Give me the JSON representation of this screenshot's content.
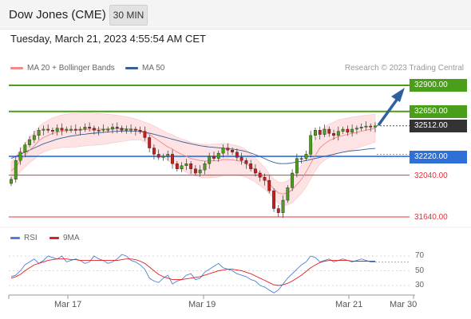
{
  "header": {
    "title": "Dow Jones (CME)",
    "timeframe": "30 MIN",
    "datetime": "Tuesday, March 21, 2023 4:55:54 AM CET"
  },
  "legend": {
    "ma20": "MA 20 + Bollinger Bands",
    "ma50": "MA 50",
    "credit": "Research © 2023 Trading Central",
    "ma20_color": "#f28a8a",
    "ma50_color": "#3a5f95"
  },
  "rsi_legend": {
    "rsi": "RSI",
    "ma": "9MA",
    "rsi_color": "#4d7fd9",
    "ma_color": "#e02020"
  },
  "colors": {
    "resistance": "#4a9e1a",
    "pivot": "#2f6fd8",
    "support": "#e8303a",
    "last": "#333333",
    "candle_up": "#4a9e1a",
    "candle_down": "#c41e1e",
    "band_fill": "#fde3e3",
    "arrow": "#2e5f9e"
  },
  "chart_data": [
    {
      "type": "line",
      "title": "",
      "x_ticks": [
        "Mar 17",
        "Mar 19",
        "Mar 21",
        "Mar 30"
      ],
      "y_range": [
        31560,
        32960
      ],
      "levels": [
        {
          "label": "32900.00",
          "value": 32900,
          "kind": "resistance"
        },
        {
          "label": "32650.00",
          "value": 32650,
          "kind": "resistance"
        },
        {
          "label": "32512.00",
          "value": 32512,
          "kind": "last"
        },
        {
          "label": "32220.00",
          "value": 32220,
          "kind": "pivot"
        },
        {
          "label": "32040.00",
          "value": 32040,
          "kind": "support"
        },
        {
          "label": "31640.00",
          "value": 31640,
          "kind": "support"
        }
      ],
      "price_series": [
        32000,
        32180,
        32260,
        32330,
        32380,
        32420,
        32470,
        32480,
        32470,
        32460,
        32490,
        32470,
        32480,
        32480,
        32470,
        32480,
        32500,
        32490,
        32470,
        32470,
        32480,
        32480,
        32500,
        32490,
        32470,
        32480,
        32480,
        32470,
        32460,
        32400,
        32300,
        32240,
        32210,
        32220,
        32240,
        32150,
        32100,
        32130,
        32150,
        32100,
        32060,
        32090,
        32150,
        32220,
        32200,
        32250,
        32300,
        32280,
        32260,
        32210,
        32180,
        32150,
        32100,
        32060,
        32020,
        31990,
        31890,
        31720,
        31680,
        31800,
        31920,
        32060,
        32200,
        32200,
        32240,
        32420,
        32470,
        32430,
        32480,
        32440,
        32420,
        32460,
        32480,
        32450,
        32480,
        32490,
        32500,
        32510,
        32500,
        32512
      ],
      "ma20_series": [
        32080,
        32120,
        32180,
        32230,
        32280,
        32320,
        32370,
        32400,
        32420,
        32440,
        32450,
        32460,
        32465,
        32470,
        32470,
        32475,
        32478,
        32480,
        32480,
        32480,
        32480,
        32482,
        32484,
        32484,
        32484,
        32484,
        32482,
        32478,
        32470,
        32450,
        32430,
        32400,
        32370,
        32340,
        32310,
        32290,
        32260,
        32240,
        32220,
        32200,
        32190,
        32180,
        32175,
        32175,
        32178,
        32180,
        32190,
        32190,
        32185,
        32180,
        32170,
        32150,
        32120,
        32090,
        32050,
        32010,
        31960,
        31910,
        31870,
        31860,
        31870,
        31900,
        31950,
        32000,
        32070,
        32150,
        32230,
        32300,
        32340,
        32370,
        32390,
        32410,
        32420,
        32430,
        32440,
        32450,
        32460,
        32470,
        32480,
        32490
      ],
      "ma50_series": [
        32200,
        32220,
        32240,
        32260,
        32280,
        32300,
        32320,
        32340,
        32355,
        32370,
        32385,
        32395,
        32405,
        32415,
        32420,
        32428,
        32432,
        32438,
        32442,
        32446,
        32450,
        32454,
        32458,
        32460,
        32462,
        32463,
        32462,
        32460,
        32456,
        32450,
        32442,
        32432,
        32420,
        32408,
        32396,
        32384,
        32372,
        32360,
        32350,
        32340,
        32330,
        32322,
        32316,
        32310,
        32306,
        32302,
        32298,
        32294,
        32290,
        32284,
        32276,
        32266,
        32252,
        32236,
        32218,
        32198,
        32178,
        32162,
        32152,
        32150,
        32152,
        32158,
        32166,
        32172,
        32180,
        32190,
        32200,
        32210,
        32220,
        32230,
        32240,
        32250,
        32260,
        32268,
        32274,
        32278,
        32282,
        32288,
        32292,
        32296
      ]
    },
    {
      "type": "line",
      "title": "",
      "y_ticks": [
        70,
        50,
        30
      ],
      "y_range": [
        12,
        84
      ],
      "rsi_series": [
        42,
        44,
        50,
        58,
        62,
        66,
        60,
        64,
        70,
        68,
        66,
        70,
        62,
        64,
        66,
        64,
        60,
        62,
        70,
        66,
        64,
        60,
        62,
        66,
        72,
        70,
        64,
        62,
        58,
        52,
        40,
        36,
        34,
        40,
        44,
        32,
        36,
        38,
        44,
        46,
        38,
        40,
        48,
        52,
        56,
        60,
        54,
        52,
        50,
        46,
        44,
        42,
        38,
        36,
        30,
        28,
        24,
        20,
        24,
        32,
        40,
        46,
        52,
        58,
        62,
        70,
        68,
        62,
        64,
        66,
        62,
        64,
        66,
        64,
        62,
        64,
        66,
        64,
        62,
        62
      ],
      "ma_series": [
        40,
        42,
        45,
        50,
        54,
        58,
        60,
        62,
        64,
        65,
        66,
        66,
        66,
        65,
        65,
        64,
        64,
        64,
        64,
        64,
        64,
        64,
        64,
        64,
        65,
        66,
        66,
        65,
        63,
        60,
        55,
        50,
        45,
        42,
        40,
        38,
        38,
        38,
        39,
        40,
        41,
        42,
        44,
        46,
        48,
        50,
        51,
        52,
        52,
        51,
        50,
        48,
        46,
        43,
        40,
        37,
        34,
        31,
        30,
        31,
        33,
        36,
        40,
        44,
        49,
        54,
        58,
        61,
        63,
        64,
        64,
        64,
        64,
        64,
        63,
        63,
        63,
        63,
        63,
        63
      ]
    }
  ]
}
